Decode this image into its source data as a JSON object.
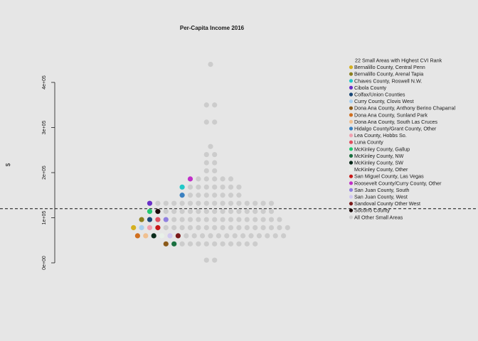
{
  "chart_data": {
    "type": "scatter",
    "title": "Per-Capita Income 2016",
    "xlabel": "",
    "ylabel": "$",
    "ylim": [
      0,
      440000
    ],
    "y_ticks": [
      {
        "value": 0,
        "label": "0e+00"
      },
      {
        "value": 100000,
        "label": "1e+05"
      },
      {
        "value": 200000,
        "label": "2e+05"
      },
      {
        "value": 300000,
        "label": "3e+05"
      },
      {
        "value": 400000,
        "label": "4e+05"
      }
    ],
    "reference_line": {
      "y": 120000,
      "style": "dashed"
    },
    "grid": false,
    "legend": {
      "placement": "right",
      "title": "22 Small Areas with Highest CVI Rank",
      "entries": [
        {
          "name": "Bernalillo County, Central Penn",
          "color": "#d4b020"
        },
        {
          "name": "Bernalillo County, Arenal Tapia",
          "color": "#8c8020"
        },
        {
          "name": "Chaves County, Roswell N.W.",
          "color": "#20c8c8"
        },
        {
          "name": "Cibola County",
          "color": "#6a30c8"
        },
        {
          "name": "Colfax/Union Counties",
          "color": "#1a4878"
        },
        {
          "name": "Curry County, Clovis West",
          "color": "#a8d0f0"
        },
        {
          "name": "Dona Ana County, Anthony Berino Chaparral",
          "color": "#8b5a1a"
        },
        {
          "name": "Dona Ana County, Sunland Park",
          "color": "#d07020"
        },
        {
          "name": "Dona Ana County, South Las Cruces",
          "color": "#f0c090"
        },
        {
          "name": "Hidalgo County/Grant County, Other",
          "color": "#3a80c0"
        },
        {
          "name": "Lea County, Hobbs So.",
          "color": "#f0a0b0"
        },
        {
          "name": "Luna County",
          "color": "#e05060"
        },
        {
          "name": "McKinley County, Gallup",
          "color": "#20c870"
        },
        {
          "name": "McKinley County, NW",
          "color": "#1a7040"
        },
        {
          "name": "McKinley County, SW",
          "color": "#0a2a1a"
        },
        {
          "name": "McKinley County, Other",
          "color": "#e8f0e8"
        },
        {
          "name": "San Miguel County, Las Vegas",
          "color": "#c81818"
        },
        {
          "name": "Roosevelt County/Curry County, Other",
          "color": "#c030c8"
        },
        {
          "name": "San Juan County, South",
          "color": "#9080e0"
        },
        {
          "name": "San Juan County, West",
          "color": "#d0c8f0"
        },
        {
          "name": "Sandoval County Other West",
          "color": "#7a1a1a"
        },
        {
          "name": "Socorro County",
          "color": "#1a0a0a"
        },
        {
          "name": "All Other Small Areas",
          "color": "#cccccc"
        }
      ]
    },
    "highlighted_points": [
      {
        "area": "Bernalillo County, Central Penn",
        "y": 78000
      },
      {
        "area": "Bernalillo County, Arenal Tapia",
        "y": 96000
      },
      {
        "area": "Chaves County, Roswell N.W.",
        "y": 168000
      },
      {
        "area": "Cibola County",
        "y": 132000
      },
      {
        "area": "Colfax/Union Counties",
        "y": 96000
      },
      {
        "area": "Curry County, Clovis West",
        "y": 78000
      },
      {
        "area": "Dona Ana County, Anthony Berino Chaparral",
        "y": 42000
      },
      {
        "area": "Dona Ana County, Sunland Park",
        "y": 60000
      },
      {
        "area": "Dona Ana County, South Las Cruces",
        "y": 60000
      },
      {
        "area": "Hidalgo County/Grant County, Other",
        "y": 150000
      },
      {
        "area": "Lea County, Hobbs So.",
        "y": 78000
      },
      {
        "area": "Luna County",
        "y": 96000
      },
      {
        "area": "McKinley County, Gallup",
        "y": 114000
      },
      {
        "area": "McKinley County, NW",
        "y": 42000
      },
      {
        "area": "McKinley County, SW",
        "y": 60000
      },
      {
        "area": "McKinley County, Other",
        "y": 60000
      },
      {
        "area": "San Miguel County, Las Vegas",
        "y": 78000
      },
      {
        "area": "Roosevelt County/Curry County, Other",
        "y": 186000
      },
      {
        "area": "San Juan County, South",
        "y": 96000
      },
      {
        "area": "San Juan County, West",
        "y": 60000
      },
      {
        "area": "Sandoval County Other West",
        "y": 60000
      },
      {
        "area": "Socorro County",
        "y": 114000
      }
    ],
    "other_points": [
      {
        "y": 440000,
        "count": 1
      },
      {
        "y": 350000,
        "count": 2
      },
      {
        "y": 312000,
        "count": 2
      },
      {
        "y": 258000,
        "count": 1
      },
      {
        "y": 240000,
        "count": 2
      },
      {
        "y": 222000,
        "count": 2
      },
      {
        "y": 204000,
        "count": 2
      },
      {
        "y": 186000,
        "count": 5
      },
      {
        "y": 168000,
        "count": 7
      },
      {
        "y": 150000,
        "count": 7
      },
      {
        "y": 132000,
        "count": 15
      },
      {
        "y": 114000,
        "count": 14
      },
      {
        "y": 96000,
        "count": 14
      },
      {
        "y": 78000,
        "count": 16
      },
      {
        "y": 60000,
        "count": 13
      },
      {
        "y": 42000,
        "count": 10
      },
      {
        "y": 6000,
        "count": 2
      }
    ]
  }
}
